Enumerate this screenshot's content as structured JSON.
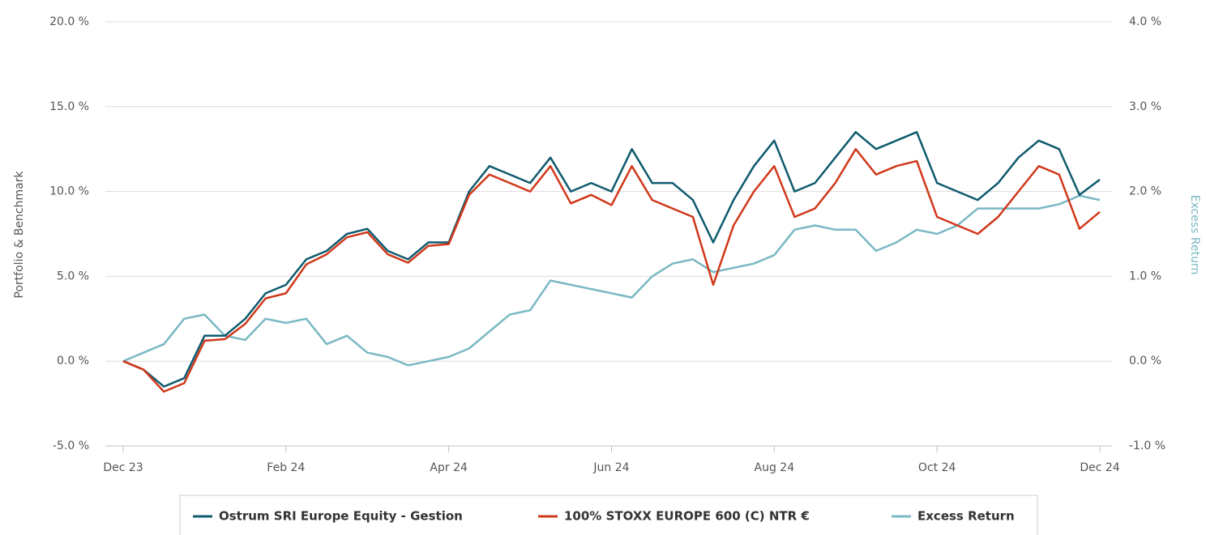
{
  "chart_data": {
    "type": "line",
    "y_label": "Portfolio & Benchmark",
    "y2_label": "Excess Return",
    "categories": [
      "Dec 23",
      null,
      null,
      null,
      null,
      null,
      null,
      null,
      "Feb 24",
      null,
      null,
      null,
      null,
      null,
      null,
      null,
      "Apr 24",
      null,
      null,
      null,
      null,
      null,
      null,
      null,
      "Jun 24",
      null,
      null,
      null,
      null,
      null,
      null,
      null,
      "Aug 24",
      null,
      null,
      null,
      null,
      null,
      null,
      null,
      "Oct 24",
      null,
      null,
      null,
      null,
      null,
      null,
      null,
      "Dec 24"
    ],
    "ylim": [
      -5,
      20
    ],
    "yticks": [
      {
        "value": -5,
        "label": "-5.0 %"
      },
      {
        "value": 0,
        "label": "0.0 %"
      },
      {
        "value": 5,
        "label": "5.0 %"
      },
      {
        "value": 10,
        "label": "10.0 %"
      },
      {
        "value": 15,
        "label": "15.0 %"
      },
      {
        "value": 20,
        "label": "20.0 %"
      }
    ],
    "y2lim": [
      -1,
      4
    ],
    "y2ticks": [
      {
        "value": -1,
        "label": "-1.0 %"
      },
      {
        "value": 0,
        "label": "0.0 %"
      },
      {
        "value": 1,
        "label": "1.0 %"
      },
      {
        "value": 2,
        "label": "2.0 %"
      },
      {
        "value": 3,
        "label": "3.0 %"
      },
      {
        "value": 4,
        "label": "4.0 %"
      }
    ],
    "grid": true,
    "legend": "bottom",
    "series": [
      {
        "name": "Ostrum SRI Europe Equity - Gestion",
        "color": "#0e5a6e",
        "values": [
          0,
          -0.5,
          -1.5,
          -1.0,
          1.5,
          1.5,
          2.5,
          4.0,
          4.5,
          6.0,
          6.5,
          7.5,
          7.8,
          6.5,
          6.0,
          7.0,
          7.0,
          10.0,
          11.5,
          11.0,
          10.5,
          12.0,
          10.0,
          10.5,
          10.0,
          12.5,
          10.5,
          10.5,
          9.5,
          7.0,
          9.5,
          11.5,
          13.0,
          10.0,
          10.5,
          12.0,
          13.5,
          12.5,
          13.0,
          13.5,
          10.5,
          10.0,
          9.5,
          10.5,
          12.0,
          13.0,
          12.5,
          9.8,
          10.7
        ]
      },
      {
        "name": "100% STOXX EUROPE 600 (C) NTR €",
        "color": "#d0381a",
        "values": [
          0,
          -0.5,
          -1.8,
          -1.3,
          1.2,
          1.3,
          2.2,
          3.7,
          4.0,
          5.7,
          6.3,
          7.3,
          7.6,
          6.3,
          5.8,
          6.8,
          6.9,
          9.8,
          11.0,
          10.5,
          10.0,
          11.5,
          9.3,
          9.8,
          9.2,
          11.5,
          9.5,
          9.0,
          8.5,
          4.5,
          8.0,
          10.0,
          11.5,
          8.5,
          9.0,
          10.5,
          12.5,
          11.0,
          11.5,
          11.8,
          8.5,
          8.0,
          7.5,
          8.5,
          10.0,
          11.5,
          11.0,
          7.8,
          8.8
        ]
      },
      {
        "name": "Excess Return",
        "color": "#7ab8c4",
        "axis": "y2",
        "values": [
          0,
          0.1,
          0.2,
          0.5,
          0.55,
          0.3,
          0.25,
          0.5,
          0.45,
          0.5,
          0.2,
          0.3,
          0.1,
          0.05,
          -0.05,
          0.0,
          0.05,
          0.15,
          0.35,
          0.55,
          0.6,
          0.95,
          0.9,
          0.85,
          0.8,
          0.75,
          1.0,
          1.15,
          1.2,
          1.05,
          1.1,
          1.15,
          1.25,
          1.55,
          1.6,
          1.55,
          1.55,
          1.3,
          1.4,
          1.55,
          1.5,
          1.6,
          1.8,
          1.8,
          1.8,
          1.8,
          1.85,
          1.95,
          1.9
        ]
      }
    ]
  }
}
